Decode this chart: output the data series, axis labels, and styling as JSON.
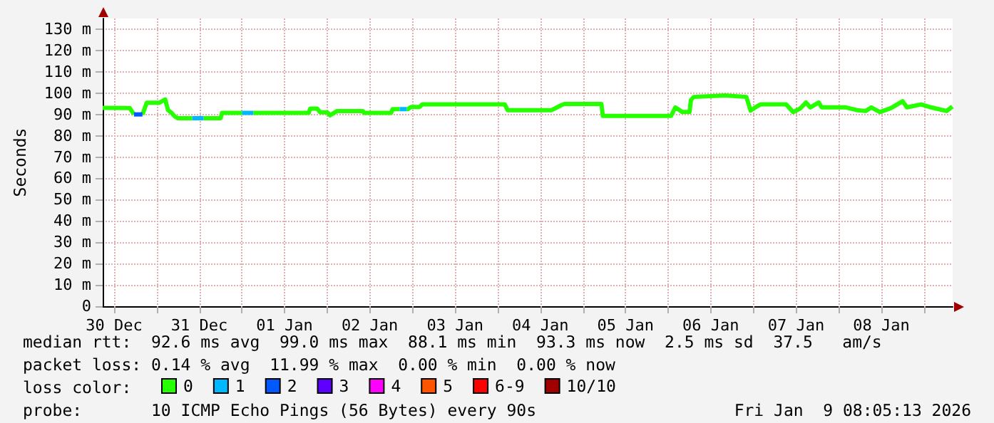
{
  "chart_data": {
    "type": "line",
    "ylabel": "Seconds",
    "legend_title": "loss color:",
    "legend": "bottom",
    "grid": true,
    "marker": "none",
    "xlim": [
      "2025-12-30T08:48",
      "2026-01-09T08:05"
    ],
    "xticks": [
      {
        "value": "2025-12-30T12:00",
        "label": "30 Dec"
      },
      {
        "value": "2025-12-31T00:00",
        "label": null
      },
      {
        "value": "2025-12-31T12:00",
        "label": "31 Dec"
      },
      {
        "value": "2026-01-01T00:00",
        "label": null
      },
      {
        "value": "2026-01-01T12:00",
        "label": "01 Jan"
      },
      {
        "value": "2026-01-02T00:00",
        "label": null
      },
      {
        "value": "2026-01-02T12:00",
        "label": "02 Jan"
      },
      {
        "value": "2026-01-03T00:00",
        "label": null
      },
      {
        "value": "2026-01-03T12:00",
        "label": "03 Jan"
      },
      {
        "value": "2026-01-04T00:00",
        "label": null
      },
      {
        "value": "2026-01-04T12:00",
        "label": "04 Jan"
      },
      {
        "value": "2026-01-05T00:00",
        "label": null
      },
      {
        "value": "2026-01-05T12:00",
        "label": "05 Jan"
      },
      {
        "value": "2026-01-06T00:00",
        "label": null
      },
      {
        "value": "2026-01-06T12:00",
        "label": "06 Jan"
      },
      {
        "value": "2026-01-07T00:00",
        "label": null
      },
      {
        "value": "2026-01-07T12:00",
        "label": "07 Jan"
      },
      {
        "value": "2026-01-08T00:00",
        "label": null
      },
      {
        "value": "2026-01-08T12:00",
        "label": "08 Jan"
      },
      {
        "value": "2026-01-09T00:00",
        "label": null
      }
    ],
    "ylim": [
      0,
      135
    ],
    "yticks": [
      0,
      {
        "value": 10,
        "label": "10 m"
      },
      {
        "value": 20,
        "label": "20 m"
      },
      {
        "value": 30,
        "label": "30 m"
      },
      {
        "value": 40,
        "label": "40 m"
      },
      {
        "value": 50,
        "label": "50 m"
      },
      {
        "value": 60,
        "label": "60 m"
      },
      {
        "value": 70,
        "label": "70 m"
      },
      {
        "value": 80,
        "label": "80 m"
      },
      {
        "value": 90,
        "label": "90 m"
      },
      {
        "value": 100,
        "label": "100 m"
      },
      {
        "value": 110,
        "label": "110 m"
      },
      {
        "value": 120,
        "label": "120 m"
      },
      {
        "value": 130,
        "label": "130 m"
      }
    ],
    "series": [
      {
        "name": "0",
        "color": "#26ff00",
        "x": [
          "2025-12-30T08:48",
          "2025-12-30T16:24",
          "2025-12-30T17:36",
          "2025-12-30T18:30",
          "2025-12-30T20:00",
          "2025-12-30T21:12",
          "2025-12-31T00:48",
          "2025-12-31T02:24",
          "2025-12-31T03:12",
          "2025-12-31T04:00",
          "2025-12-31T05:12",
          "2025-12-31T06:00",
          "2025-12-31T10:00",
          "2025-12-31T11:30",
          "2025-12-31T13:12",
          "2025-12-31T18:00",
          "2025-12-31T18:24",
          "2026-01-01T00:00",
          "2026-01-01T01:30",
          "2026-01-01T03:12",
          "2026-01-01T18:48",
          "2026-01-01T19:12",
          "2026-01-01T21:12",
          "2026-01-01T22:00",
          "2026-01-02T00:00",
          "2026-01-02T00:48",
          "2026-01-02T02:48",
          "2026-01-02T10:00",
          "2026-01-02T10:24",
          "2026-01-02T18:00",
          "2026-01-02T18:24",
          "2026-01-02T20:24",
          "2026-01-02T21:30",
          "2026-01-02T22:24",
          "2026-01-02T22:48",
          "2026-01-02T23:36",
          "2026-01-03T02:00",
          "2026-01-03T02:48",
          "2026-01-04T02:00",
          "2026-01-04T02:48",
          "2026-01-04T15:12",
          "2026-01-04T18:00",
          "2026-01-04T18:48",
          "2026-01-05T05:12",
          "2026-01-05T05:36",
          "2026-01-06T00:48",
          "2026-01-06T02:00",
          "2026-01-06T04:00",
          "2026-01-06T06:00",
          "2026-01-06T06:24",
          "2026-01-06T07:12",
          "2026-01-06T16:00",
          "2026-01-06T22:00",
          "2026-01-06T23:12",
          "2026-01-07T00:48",
          "2026-01-07T02:00",
          "2026-01-07T09:12",
          "2026-01-07T11:12",
          "2026-01-07T13:12",
          "2026-01-07T14:48",
          "2026-01-07T16:00",
          "2026-01-07T18:24",
          "2026-01-07T19:12",
          "2026-01-08T02:00",
          "2026-01-08T05:12",
          "2026-01-08T07:36",
          "2026-01-08T09:12",
          "2026-01-08T11:36",
          "2026-01-08T14:48",
          "2026-01-08T18:00",
          "2026-01-08T19:12",
          "2026-01-08T23:12",
          "2026-01-09T02:00",
          "2026-01-09T06:24",
          "2026-01-09T08:00"
        ],
        "values": [
          93.1,
          93,
          90,
          null,
          90,
          95.5,
          95.5,
          97,
          92,
          91,
          88.9,
          88.2,
          88.2,
          null,
          88.2,
          88.2,
          90.7,
          90.7,
          null,
          90.7,
          90.7,
          92.7,
          92.7,
          91,
          91,
          89.6,
          91.6,
          91.6,
          90.7,
          90.7,
          92.5,
          92.5,
          null,
          92.5,
          92.5,
          93.5,
          93.5,
          94.7,
          94.7,
          92,
          92,
          94.4,
          94.9,
          94.9,
          89.3,
          89.3,
          93.3,
          91.1,
          91.1,
          96.7,
          98.2,
          98.9,
          98.2,
          91.8,
          93.6,
          94.7,
          94.7,
          91.1,
          92.8,
          95.6,
          93.3,
          95.6,
          93.3,
          93.3,
          92,
          91.6,
          93.3,
          91.1,
          93,
          96.2,
          93.3,
          94.7,
          93.3,
          91.6,
          93.7
        ]
      },
      {
        "name": "1",
        "color": "#00b8ff",
        "x": [
          "2025-12-31T10:00",
          "2025-12-31T13:12",
          "2025-12-31T20:00",
          "2026-01-01T00:00",
          "2026-01-01T03:12",
          "2026-01-02T06:00",
          "2026-01-02T20:24",
          "2026-01-02T22:24"
        ],
        "values": [
          88.2,
          88.2,
          null,
          90.7,
          90.7,
          null,
          92.5,
          92.5
        ]
      },
      {
        "name": "2",
        "color": "#0059ff",
        "x": [
          "2025-12-30T17:36",
          "2025-12-30T20:00"
        ],
        "values": [
          90,
          90
        ]
      },
      {
        "name": "3",
        "color": "#5e00ff"
      },
      {
        "name": "4",
        "color": "#ff00ff"
      },
      {
        "name": "5",
        "color": "#ff5500"
      },
      {
        "name": "6-9",
        "color": "#ff0000"
      },
      {
        "name": "10/10",
        "color": "#a10000"
      }
    ],
    "annotations": [
      "median rtt:  92.6 ms avg  99.0 ms max  88.1 ms min  93.3 ms now  2.5 ms sd  37.5   am/s",
      "packet loss: 0.14 % avg  11.99 % max  0.00 % min  0.00 % now",
      "probe:       10 ICMP Echo Pings (56 Bytes) every 90s",
      "Fri Jan  9 08:05:13 2026"
    ]
  }
}
